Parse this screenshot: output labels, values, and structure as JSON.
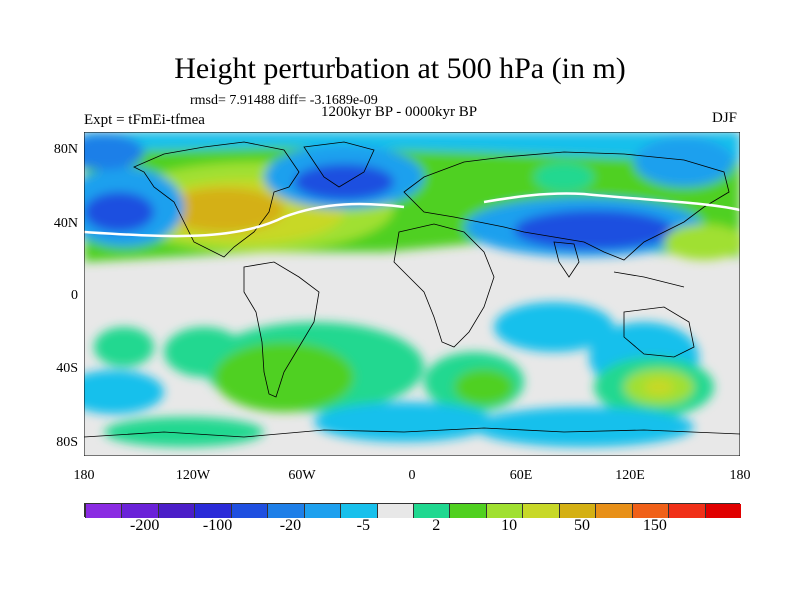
{
  "title": "Height perturbation at 500 hPa (in m)",
  "stats": "rmsd= 7.91488 diff= -3.1689e-09",
  "experiment": "Expt = tFmEi-tfmea",
  "period": "1200kyr BP - 0000kyr BP",
  "season": "DJF",
  "y_ticks": [
    "80N",
    "40N",
    "0",
    "40S",
    "80S"
  ],
  "x_ticks": [
    "180",
    "120W",
    "60W",
    "0",
    "60E",
    "120E",
    "180"
  ],
  "colorbar": {
    "colors": [
      "#8a2be2",
      "#6a22d8",
      "#4b1ec8",
      "#2a2ad8",
      "#1f4fe0",
      "#1e7fe8",
      "#1ea0ee",
      "#18c0ec",
      "#e8e8e8",
      "#20d890",
      "#50d020",
      "#a0e030",
      "#c8d828",
      "#d4b014",
      "#e89018",
      "#f06018",
      "#f03018",
      "#e00000"
    ],
    "labels": [
      "-200",
      "-100",
      "-20",
      "-5",
      "2",
      "10",
      "50",
      "150"
    ],
    "label_positions": [
      2,
      4,
      6,
      8,
      10,
      12,
      14,
      16
    ]
  },
  "legend_colors": {
    "land_outline": "#000000",
    "neutral": "#e8e8e8"
  }
}
